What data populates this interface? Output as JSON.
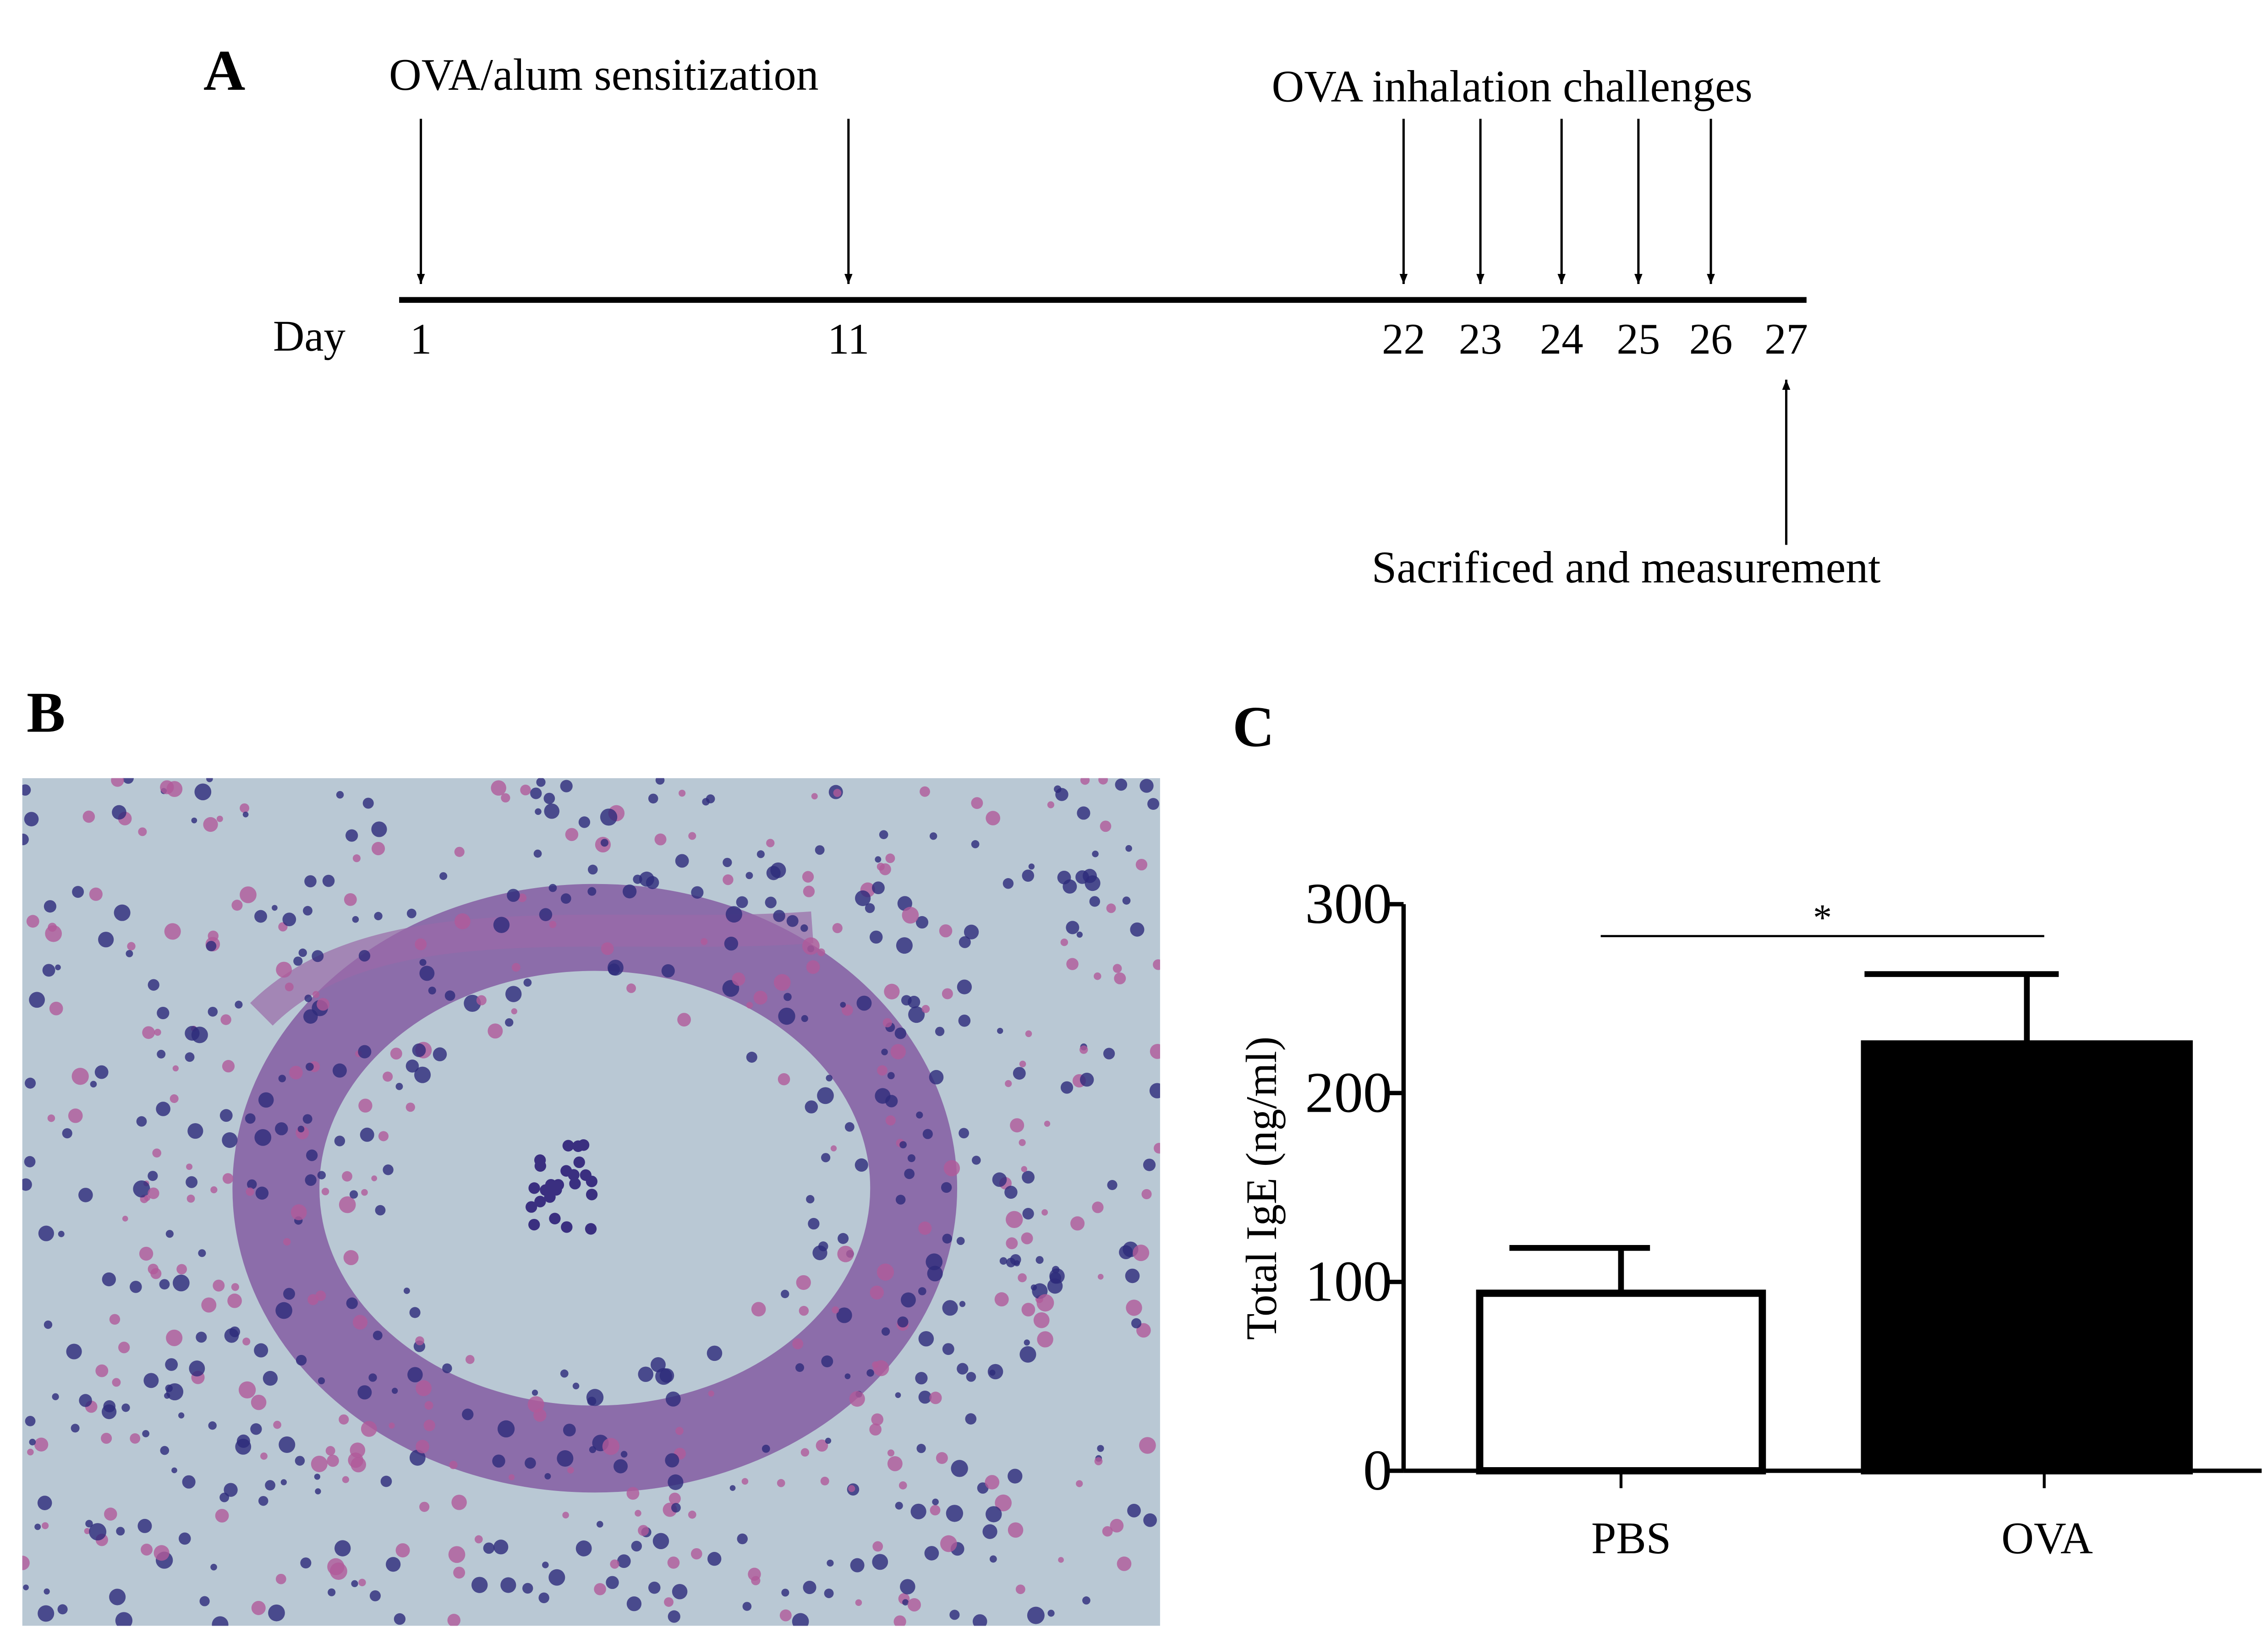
{
  "panel_a": {
    "label": "A",
    "day_label": "Day",
    "days": [
      1,
      11,
      22,
      23,
      24,
      25,
      26,
      27
    ],
    "events": [
      {
        "label": "OVA/alum sensitization"
      },
      {
        "label": "OVA inhalation challenges"
      },
      {
        "label": "Sacrificed and measurement"
      }
    ]
  },
  "panel_b": {
    "label": "B"
  },
  "chart_data": {
    "type": "bar",
    "panel_label": "C",
    "ylabel": "Total IgE (ng/ml)",
    "categories": [
      "PBS",
      "OVA"
    ],
    "values": [
      94,
      226
    ],
    "errors": [
      24,
      37
    ],
    "colors": [
      "#ffffff",
      "#000000"
    ],
    "ylim": [
      0,
      300
    ],
    "yticks": [
      0,
      100,
      200,
      300
    ],
    "annotation": "*"
  }
}
